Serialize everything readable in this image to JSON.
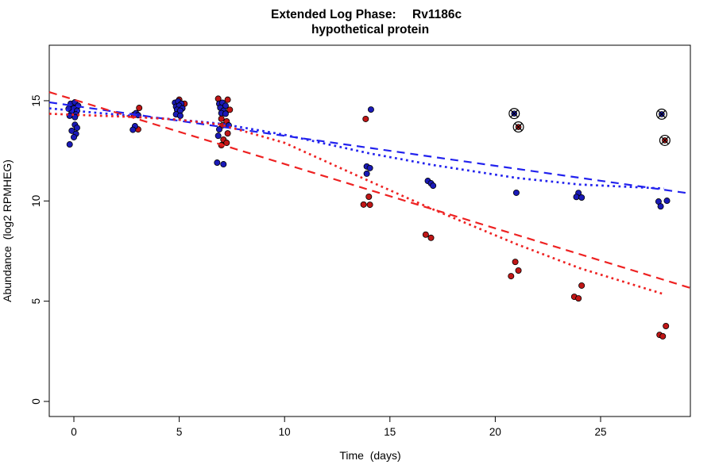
{
  "figure": {
    "title_left": "Extended Log Phase:",
    "title_right": "Rv1186c",
    "subtitle": "hypothetical protein",
    "xlabel": "Time  (days)",
    "ylabel": "Abundance  (log2 RPMHEG)"
  },
  "chart_data": {
    "type": "scatter",
    "title": "Extended Log Phase: Rv1186c",
    "subtitle": "hypothetical protein",
    "xlabel": "Time (days)",
    "ylabel": "Abundance (log2 RPMHEG)",
    "xlim": [
      -1.2,
      29.3
    ],
    "ylim": [
      -0.75,
      17.8
    ],
    "x_ticks": [
      0,
      5,
      10,
      15,
      20,
      25
    ],
    "y_ticks": [
      0,
      5,
      10,
      15
    ],
    "grid": false,
    "legend": "none",
    "colors": {
      "blue_point": "#1a1ab8",
      "red_point": "#c01616",
      "blue_line": "#2222ee",
      "red_line": "#ee2222",
      "outlier_mark": "#000000"
    },
    "series": [
      {
        "name": "red-points",
        "color": "#c01616",
        "points": [
          [
            0.0,
            14.7
          ],
          [
            -0.12,
            14.55
          ],
          [
            0.12,
            14.6
          ],
          [
            3.1,
            14.64
          ],
          [
            2.85,
            14.3
          ],
          [
            3.05,
            13.57
          ],
          [
            5.0,
            15.05
          ],
          [
            5.25,
            14.85
          ],
          [
            6.85,
            15.1
          ],
          [
            7.3,
            15.05
          ],
          [
            7.4,
            14.55
          ],
          [
            7.0,
            14.1
          ],
          [
            7.25,
            13.97
          ],
          [
            7.05,
            13.77
          ],
          [
            7.3,
            13.37
          ],
          [
            7.1,
            13.06
          ],
          [
            7.25,
            12.9
          ],
          [
            7.0,
            12.78
          ],
          [
            13.85,
            14.09
          ],
          [
            14.0,
            10.21
          ],
          [
            13.75,
            9.82
          ],
          [
            14.05,
            9.81
          ],
          [
            16.7,
            8.32
          ],
          [
            16.95,
            8.16
          ],
          [
            20.95,
            6.96
          ],
          [
            21.1,
            6.53
          ],
          [
            20.75,
            6.25
          ],
          [
            24.1,
            5.78
          ],
          [
            23.75,
            5.22
          ],
          [
            23.95,
            5.14
          ],
          [
            28.1,
            3.76
          ],
          [
            27.8,
            3.32
          ],
          [
            27.95,
            3.25
          ]
        ]
      },
      {
        "name": "blue-points",
        "color": "#1a1ab8",
        "points": [
          [
            -0.15,
            14.85
          ],
          [
            0.05,
            14.92
          ],
          [
            0.2,
            14.75
          ],
          [
            -0.25,
            14.6
          ],
          [
            0.0,
            14.62
          ],
          [
            0.15,
            14.5
          ],
          [
            -0.1,
            14.4
          ],
          [
            0.1,
            14.32
          ],
          [
            -0.2,
            14.25
          ],
          [
            0.05,
            14.18
          ],
          [
            0.05,
            13.8
          ],
          [
            0.15,
            13.65
          ],
          [
            -0.1,
            13.5
          ],
          [
            0.1,
            13.35
          ],
          [
            0.0,
            13.18
          ],
          [
            -0.2,
            12.82
          ],
          [
            2.95,
            14.38
          ],
          [
            3.05,
            14.28
          ],
          [
            2.9,
            13.73
          ],
          [
            2.8,
            13.55
          ],
          [
            4.8,
            14.9
          ],
          [
            4.95,
            14.97
          ],
          [
            5.1,
            14.85
          ],
          [
            4.85,
            14.7
          ],
          [
            5.0,
            14.75
          ],
          [
            5.15,
            14.62
          ],
          [
            4.9,
            14.55
          ],
          [
            5.05,
            14.5
          ],
          [
            4.85,
            14.32
          ],
          [
            5.05,
            14.25
          ],
          [
            6.9,
            14.85
          ],
          [
            7.05,
            14.9
          ],
          [
            7.2,
            14.75
          ],
          [
            6.95,
            14.65
          ],
          [
            7.1,
            14.5
          ],
          [
            7.0,
            14.38
          ],
          [
            7.2,
            14.35
          ],
          [
            7.35,
            13.77
          ],
          [
            6.9,
            13.57
          ],
          [
            6.85,
            13.25
          ],
          [
            6.8,
            11.91
          ],
          [
            7.1,
            11.83
          ],
          [
            14.1,
            14.56
          ],
          [
            13.9,
            11.72
          ],
          [
            14.05,
            11.64
          ],
          [
            13.9,
            11.36
          ],
          [
            16.8,
            11.0
          ],
          [
            16.95,
            10.88
          ],
          [
            17.05,
            10.76
          ],
          [
            21.0,
            10.41
          ],
          [
            23.95,
            10.4
          ],
          [
            23.85,
            10.2
          ],
          [
            24.1,
            10.17
          ],
          [
            27.75,
            9.97
          ],
          [
            27.85,
            9.73
          ],
          [
            28.15,
            10.01
          ]
        ]
      },
      {
        "name": "blue-outliers-circled",
        "color": "#1a1ab8",
        "marker": "circled-x",
        "points": [
          [
            20.9,
            14.36
          ],
          [
            27.9,
            14.33
          ]
        ]
      },
      {
        "name": "red-outliers-circled",
        "color": "#c01616",
        "marker": "circled-x",
        "points": [
          [
            21.1,
            13.69
          ],
          [
            28.05,
            13.02
          ]
        ]
      }
    ],
    "fit_lines": [
      {
        "name": "blue-dashed-linear-fit",
        "color": "#2222ee",
        "style": "dashed",
        "points": [
          [
            -1.17,
            14.92
          ],
          [
            29.26,
            10.37
          ]
        ]
      },
      {
        "name": "red-dashed-linear-fit",
        "color": "#ee2222",
        "style": "dashed",
        "points": [
          [
            -1.17,
            15.43
          ],
          [
            29.26,
            5.66
          ]
        ]
      },
      {
        "name": "blue-dotted-curve-fit",
        "color": "#2222ee",
        "style": "dotted",
        "points": [
          [
            -1.17,
            14.62
          ],
          [
            0,
            14.5
          ],
          [
            3,
            14.22
          ],
          [
            5,
            14.05
          ],
          [
            7,
            13.85
          ],
          [
            10,
            13.3
          ],
          [
            14,
            12.38
          ],
          [
            17,
            11.8
          ],
          [
            21,
            11.15
          ],
          [
            24,
            10.82
          ],
          [
            28,
            10.62
          ]
        ]
      },
      {
        "name": "red-dotted-curve-fit",
        "color": "#ee2222",
        "style": "dotted",
        "points": [
          [
            -1.17,
            14.35
          ],
          [
            0,
            14.3
          ],
          [
            3,
            14.18
          ],
          [
            5,
            14.05
          ],
          [
            7,
            13.8
          ],
          [
            10,
            12.9
          ],
          [
            14,
            11.0
          ],
          [
            17,
            9.6
          ],
          [
            21,
            7.85
          ],
          [
            24,
            6.65
          ],
          [
            28,
            5.35
          ]
        ]
      }
    ]
  }
}
